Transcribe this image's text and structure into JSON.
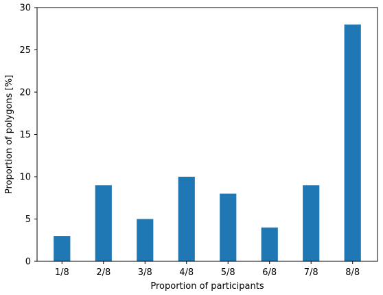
{
  "chart_data": {
    "type": "bar",
    "categories": [
      "1/8",
      "2/8",
      "3/8",
      "4/8",
      "5/8",
      "6/8",
      "7/8",
      "8/8"
    ],
    "values": [
      3,
      9,
      5,
      10,
      8,
      4,
      9,
      28
    ],
    "title": "",
    "xlabel": "Proportion of participants",
    "ylabel": "Proportion of polygons [%]",
    "ylim": [
      0,
      30
    ],
    "yticks": [
      "0",
      "5",
      "10",
      "15",
      "20",
      "25",
      "30"
    ],
    "grid": false,
    "bar_color": "#1f77b4"
  }
}
